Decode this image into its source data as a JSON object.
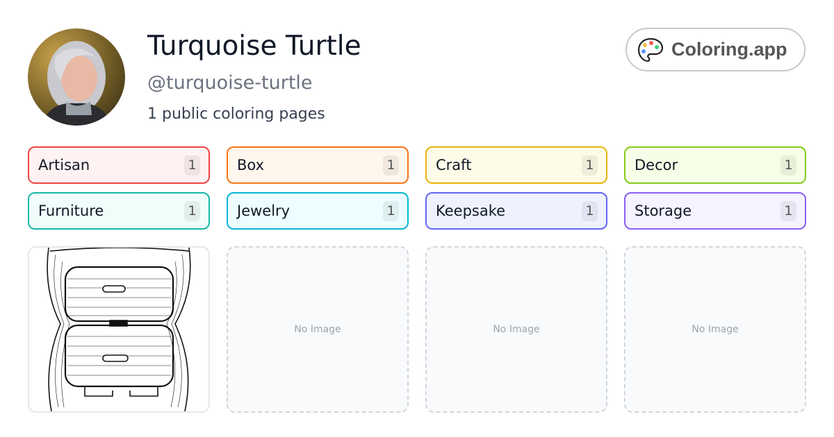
{
  "profile": {
    "name": "Turquoise Turtle",
    "handle": "@turquoise-turtle",
    "page_count": "1 public coloring pages"
  },
  "brand": {
    "label": "Coloring.app",
    "icon": "palette-icon"
  },
  "tags": [
    {
      "label": "Artisan",
      "count": "1",
      "border": "#ef4444",
      "bg": "#fef2f2"
    },
    {
      "label": "Box",
      "count": "1",
      "border": "#f97316",
      "bg": "#fff7ed"
    },
    {
      "label": "Craft",
      "count": "1",
      "border": "#eab308",
      "bg": "#fefce8"
    },
    {
      "label": "Decor",
      "count": "1",
      "border": "#84cc16",
      "bg": "#f7fee7"
    },
    {
      "label": "Furniture",
      "count": "1",
      "border": "#14b8a6",
      "bg": "#f0fdfa"
    },
    {
      "label": "Jewelry",
      "count": "1",
      "border": "#06b6d4",
      "bg": "#ecfeff"
    },
    {
      "label": "Keepsake",
      "count": "1",
      "border": "#6366f1",
      "bg": "#eef2ff"
    },
    {
      "label": "Storage",
      "count": "1",
      "border": "#8b5cf6",
      "bg": "#f5f3ff"
    }
  ],
  "gallery": {
    "placeholder": "No Image"
  }
}
